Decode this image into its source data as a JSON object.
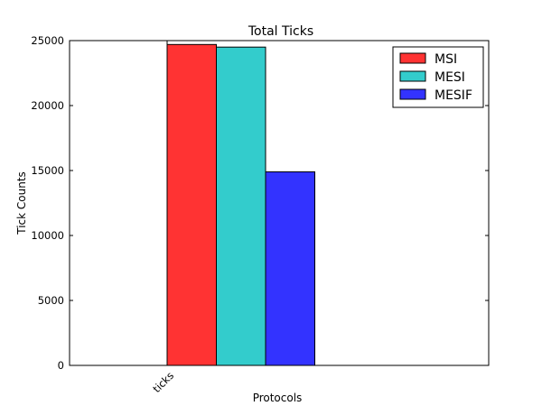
{
  "chart_data": {
    "type": "bar",
    "title": "Total Ticks",
    "xlabel": "Protocols",
    "ylabel": "Tick Counts",
    "categories": [
      "ticks"
    ],
    "series": [
      {
        "name": "MSI",
        "values": [
          24700
        ],
        "color": "#ff3333"
      },
      {
        "name": "MESI",
        "values": [
          24500
        ],
        "color": "#33cccc"
      },
      {
        "name": "MESIF",
        "values": [
          14900
        ],
        "color": "#3333ff"
      }
    ],
    "ylim": [
      0,
      25000
    ],
    "yticks": [
      0,
      5000,
      10000,
      15000,
      20000,
      25000
    ],
    "grid": false,
    "legend_position": "top-right"
  }
}
